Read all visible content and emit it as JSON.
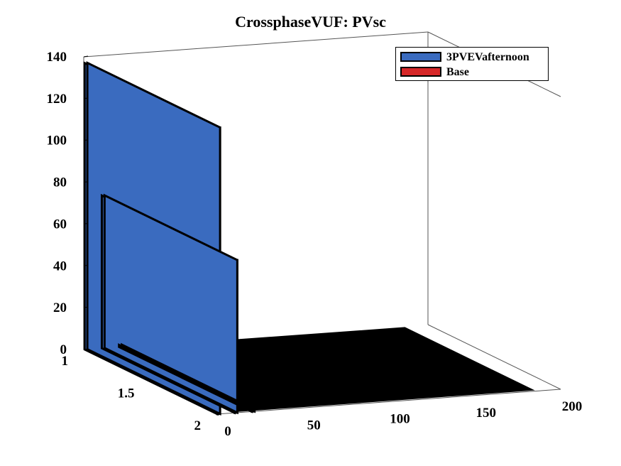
{
  "chart_data": {
    "type": "bar3",
    "title": "CrossphaseVUF: PVsc",
    "xlabel": "",
    "ylabel": "",
    "zlabel": "",
    "z_ticks": [
      "0",
      "20",
      "40",
      "60",
      "80",
      "100",
      "120",
      "140"
    ],
    "y_ticks": [
      "1",
      "1.5",
      "2"
    ],
    "x_ticks": [
      "0",
      "50",
      "100",
      "150",
      "200"
    ],
    "zlim": [
      0,
      140
    ],
    "xlim": [
      0,
      200
    ],
    "ylim": [
      1,
      2
    ],
    "grid": false,
    "legend_position": "top-right",
    "series": [
      {
        "name": "3PVEVafternoon",
        "color": "#3a6bbf",
        "row": 2,
        "x": [
          1,
          2,
          3,
          4,
          5,
          6,
          7,
          8,
          9,
          10
        ],
        "values": [
          137,
          73,
          1,
          0,
          0,
          0,
          0,
          0,
          0,
          0
        ]
      },
      {
        "name": "Base",
        "color": "#d62728",
        "row": 1,
        "x": [
          1,
          2,
          3,
          4,
          5,
          6,
          7,
          8,
          9,
          10
        ],
        "values": [
          0,
          0,
          0,
          0,
          0,
          0,
          0,
          0,
          0,
          0
        ]
      }
    ]
  }
}
